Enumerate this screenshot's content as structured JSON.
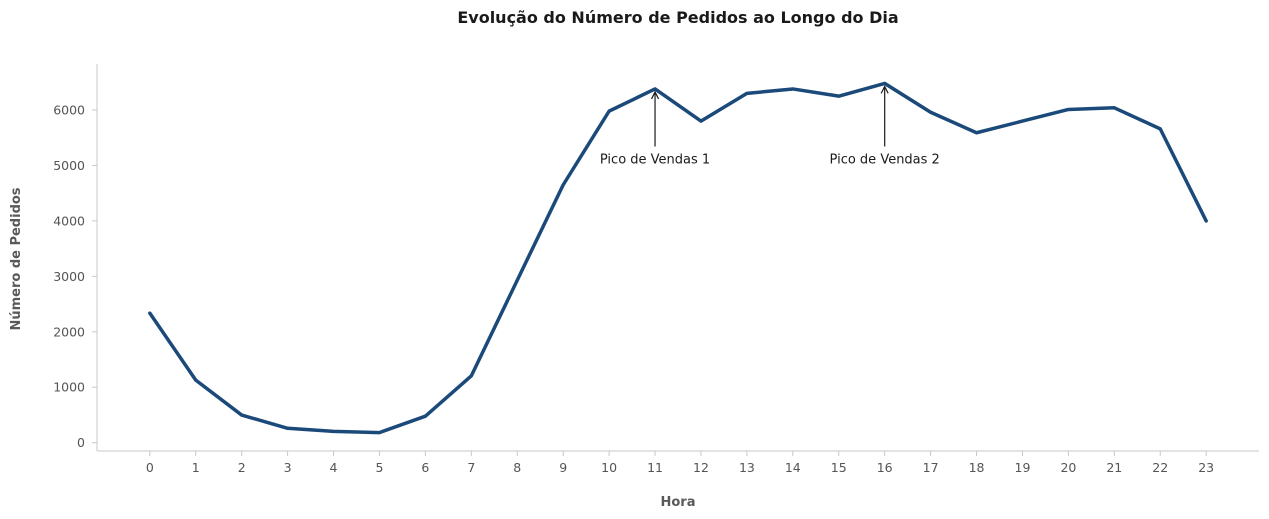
{
  "colors": {
    "line": "#1b4a7a",
    "text": "#1a1a1a",
    "axis_text": "#595959"
  },
  "chart_data": {
    "type": "line",
    "title": "Evolução do Número de Pedidos ao Longo do Dia",
    "xlabel": "Hora",
    "ylabel": "Número de Pedidos",
    "x": [
      0,
      1,
      2,
      3,
      4,
      5,
      6,
      7,
      8,
      9,
      10,
      11,
      12,
      13,
      14,
      15,
      16,
      17,
      18,
      19,
      20,
      21,
      22,
      23
    ],
    "x_tick_labels": [
      "0",
      "1",
      "2",
      "3",
      "4",
      "5",
      "6",
      "7",
      "8",
      "9",
      "10",
      "11",
      "12",
      "13",
      "14",
      "15",
      "16",
      "17",
      "18",
      "19",
      "20",
      "21",
      "22",
      "23"
    ],
    "y_ticks": [
      0,
      1000,
      2000,
      3000,
      4000,
      5000,
      6000
    ],
    "y_tick_labels": [
      "0",
      "1000",
      "2000",
      "3000",
      "4000",
      "5000",
      "6000"
    ],
    "series": [
      {
        "values": [
          2336,
          1128,
          498,
          260,
          204,
          182,
          478,
          1205,
          2930,
          4650,
          5980,
          6380,
          5800,
          6300,
          6380,
          6250,
          6480,
          5960,
          5590,
          5800,
          6010,
          6040,
          5660,
          4000
        ]
      }
    ],
    "xlim": [
      -1.15,
      24.15
    ],
    "ylim": [
      -150,
      6830
    ],
    "grid": false,
    "annotations": [
      {
        "label": "Pico de Vendas 1",
        "x": 11,
        "y": 6380,
        "text_y": 5000
      },
      {
        "label": "Pico de Vendas 2",
        "x": 16,
        "y": 6480,
        "text_y": 5000
      }
    ]
  }
}
